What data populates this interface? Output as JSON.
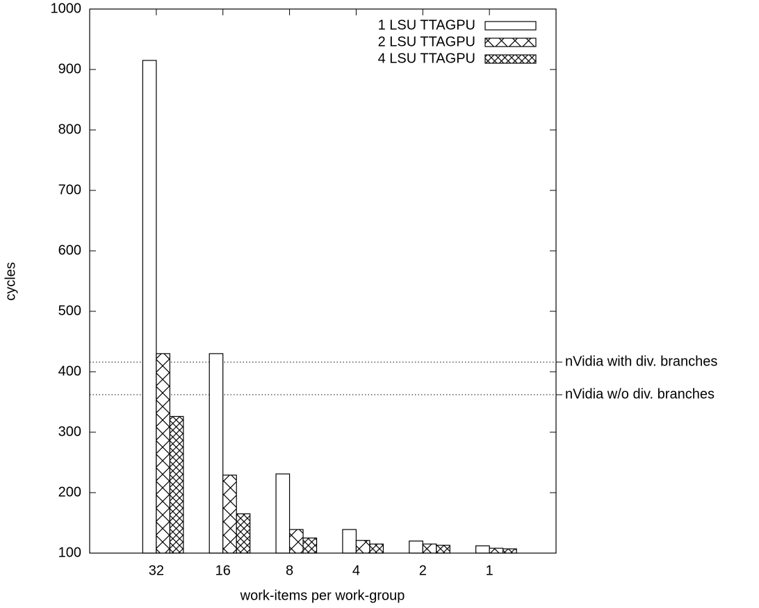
{
  "chart_data": {
    "type": "bar",
    "x_label": "work-items per work-group",
    "y_label": "cycles",
    "categories": [
      "32",
      "16",
      "8",
      "4",
      "2",
      "1"
    ],
    "series": [
      {
        "name": "1 LSU TTAGPU",
        "color": "#000000",
        "pattern": "empty",
        "values": [
          915,
          430,
          231,
          139,
          120,
          112
        ]
      },
      {
        "name": "2 LSU TTAGPU",
        "color": "#000000",
        "pattern": "cross",
        "values": [
          430,
          229,
          139,
          121,
          115,
          108
        ]
      },
      {
        "name": "4 LSU TTAGPU",
        "color": "#000000",
        "pattern": "dense-cross",
        "values": [
          326,
          165,
          125,
          115,
          113,
          107
        ]
      }
    ],
    "reference_lines": [
      {
        "value": 416,
        "label": "nVidia with div. branches"
      },
      {
        "value": 362,
        "label": "nVidia w/o div. branches"
      }
    ],
    "ylim": [
      100,
      1000
    ],
    "yticks": [
      100,
      200,
      300,
      400,
      500,
      600,
      700,
      800,
      900,
      1000
    ],
    "legend": "upper right",
    "grid": false
  }
}
